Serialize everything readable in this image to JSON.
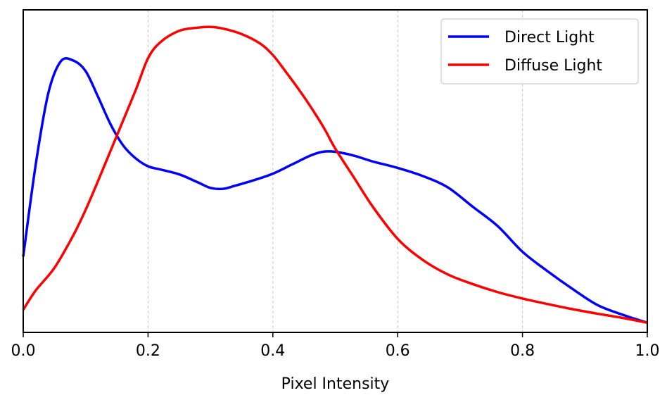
{
  "chart_data": {
    "type": "line",
    "title": "",
    "xlabel": "Pixel Intensity",
    "ylabel": "",
    "xlim": [
      0.0,
      1.0
    ],
    "ylim": [
      0.0,
      1.0
    ],
    "x_ticks": [
      "0.0",
      "0.2",
      "0.4",
      "0.6",
      "0.8",
      "1.0"
    ],
    "x_tick_values": [
      0.0,
      0.2,
      0.4,
      0.6,
      0.8,
      1.0
    ],
    "grid": "vertical dashed",
    "legend_position": "top-right",
    "series": [
      {
        "name": "Direct Light",
        "color": "#0000ff",
        "x": [
          0.0,
          0.02,
          0.04,
          0.06,
          0.08,
          0.1,
          0.12,
          0.14,
          0.16,
          0.18,
          0.2,
          0.22,
          0.25,
          0.28,
          0.3,
          0.32,
          0.34,
          0.37,
          0.4,
          0.43,
          0.46,
          0.48,
          0.5,
          0.53,
          0.56,
          0.6,
          0.64,
          0.68,
          0.72,
          0.76,
          0.8,
          0.84,
          0.88,
          0.92,
          0.96,
          1.0
        ],
        "y": [
          0.235,
          0.52,
          0.74,
          0.84,
          0.843,
          0.81,
          0.73,
          0.645,
          0.58,
          0.54,
          0.515,
          0.505,
          0.49,
          0.465,
          0.448,
          0.445,
          0.455,
          0.472,
          0.492,
          0.52,
          0.548,
          0.56,
          0.56,
          0.548,
          0.53,
          0.51,
          0.485,
          0.45,
          0.39,
          0.33,
          0.25,
          0.19,
          0.135,
          0.085,
          0.055,
          0.03
        ],
        "smooth": true
      },
      {
        "name": "Diffuse Light",
        "color": "#ff0000",
        "x": [
          0.0,
          0.02,
          0.05,
          0.08,
          0.1,
          0.12,
          0.15,
          0.18,
          0.2,
          0.22,
          0.25,
          0.28,
          0.3,
          0.32,
          0.35,
          0.38,
          0.4,
          0.42,
          0.45,
          0.48,
          0.5,
          0.53,
          0.56,
          0.6,
          0.64,
          0.68,
          0.72,
          0.76,
          0.8,
          0.84,
          0.88,
          0.92,
          0.96,
          1.0
        ],
        "y": [
          0.07,
          0.13,
          0.2,
          0.3,
          0.38,
          0.47,
          0.61,
          0.75,
          0.85,
          0.9,
          0.935,
          0.945,
          0.947,
          0.942,
          0.925,
          0.895,
          0.86,
          0.81,
          0.73,
          0.64,
          0.57,
          0.48,
          0.39,
          0.29,
          0.225,
          0.18,
          0.15,
          0.125,
          0.105,
          0.088,
          0.072,
          0.058,
          0.045,
          0.03
        ],
        "smooth": true
      }
    ]
  }
}
